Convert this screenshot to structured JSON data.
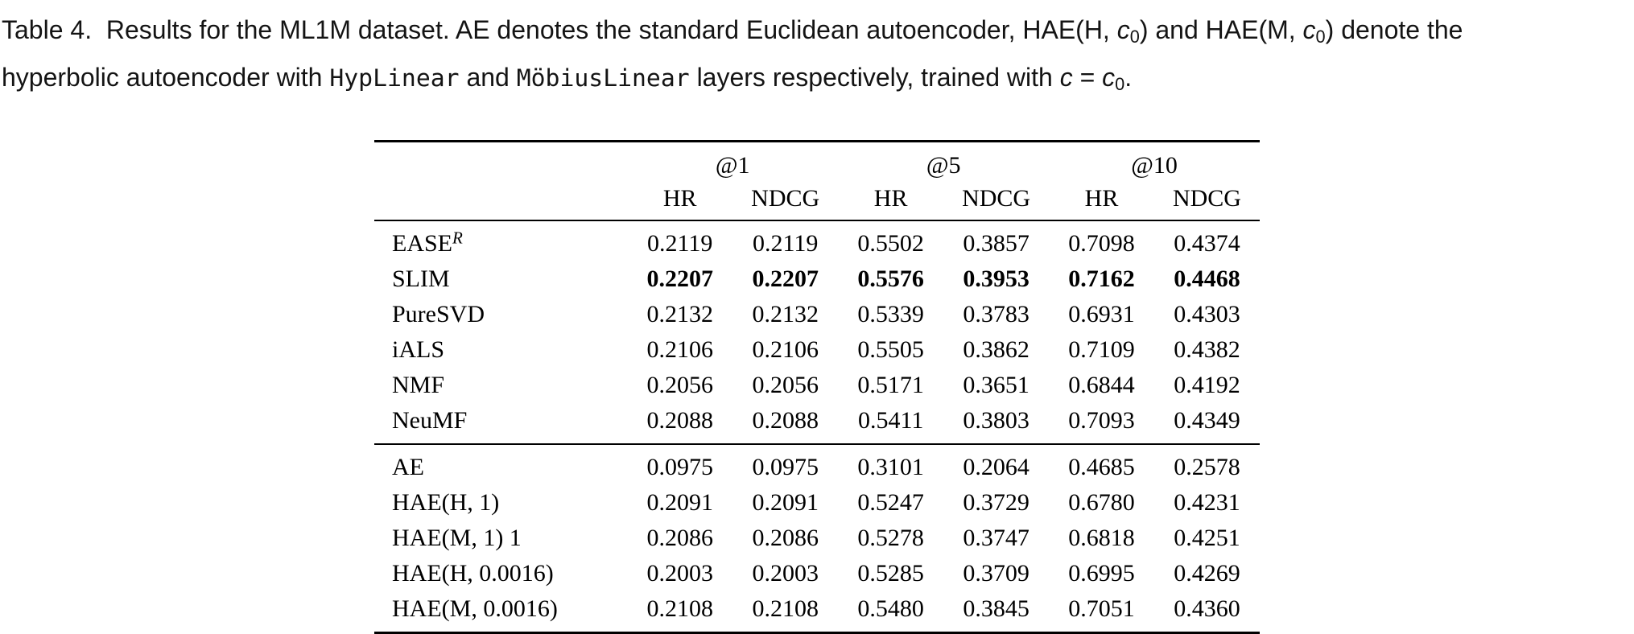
{
  "colors": {
    "text": "#000000",
    "background": "#ffffff"
  },
  "caption": {
    "segments": [
      {
        "style": "plain",
        "t": "Table 4.  Results for the ML1M dataset. AE denotes the standard Euclidean autoencoder, HAE(H, "
      },
      {
        "style": "math",
        "t": "c"
      },
      {
        "style": "msub",
        "t": "0"
      },
      {
        "style": "plain",
        "t": ") and HAE(M, "
      },
      {
        "style": "math",
        "t": "c"
      },
      {
        "style": "msub",
        "t": "0"
      },
      {
        "style": "plain",
        "t": ") denote the"
      },
      {
        "style": "br",
        "t": ""
      },
      {
        "style": "plain",
        "t": "hyperbolic autoencoder with "
      },
      {
        "style": "code",
        "t": "HypLinear"
      },
      {
        "style": "plain",
        "t": " and "
      },
      {
        "style": "code",
        "t": "MöbiusLinear"
      },
      {
        "style": "plain",
        "t": " layers respectively, trained with "
      },
      {
        "style": "math",
        "t": "c"
      },
      {
        "style": "plain",
        "t": " = "
      },
      {
        "style": "math",
        "t": "c"
      },
      {
        "style": "msub",
        "t": "0"
      },
      {
        "style": "plain",
        "t": "."
      }
    ]
  },
  "table": {
    "col_groups": [
      {
        "label": "@1"
      },
      {
        "label": "@5"
      },
      {
        "label": "@10"
      }
    ],
    "sub_headers": [
      "HR",
      "NDCG",
      "HR",
      "NDCG",
      "HR",
      "NDCG"
    ],
    "groups": [
      {
        "rows": [
          {
            "label": "EASE",
            "label_sup": "R",
            "bold": false,
            "values": [
              "0.2119",
              "0.2119",
              "0.5502",
              "0.3857",
              "0.7098",
              "0.4374"
            ]
          },
          {
            "label": "SLIM",
            "bold": true,
            "values": [
              "0.2207",
              "0.2207",
              "0.5576",
              "0.3953",
              "0.7162",
              "0.4468"
            ]
          },
          {
            "label": "PureSVD",
            "bold": false,
            "values": [
              "0.2132",
              "0.2132",
              "0.5339",
              "0.3783",
              "0.6931",
              "0.4303"
            ]
          },
          {
            "label": "iALS",
            "bold": false,
            "values": [
              "0.2106",
              "0.2106",
              "0.5505",
              "0.3862",
              "0.7109",
              "0.4382"
            ]
          },
          {
            "label": "NMF",
            "bold": false,
            "values": [
              "0.2056",
              "0.2056",
              "0.5171",
              "0.3651",
              "0.6844",
              "0.4192"
            ]
          },
          {
            "label": "NeuMF",
            "bold": false,
            "values": [
              "0.2088",
              "0.2088",
              "0.5411",
              "0.3803",
              "0.7093",
              "0.4349"
            ]
          }
        ]
      },
      {
        "rows": [
          {
            "label": "AE",
            "bold": false,
            "values": [
              "0.0975",
              "0.0975",
              "0.3101",
              "0.2064",
              "0.4685",
              "0.2578"
            ]
          },
          {
            "label": "HAE(H, 1)",
            "bold": false,
            "values": [
              "0.2091",
              "0.2091",
              "0.5247",
              "0.3729",
              "0.6780",
              "0.4231"
            ]
          },
          {
            "label": "HAE(M, 1) 1",
            "bold": false,
            "values": [
              "0.2086",
              "0.2086",
              "0.5278",
              "0.3747",
              "0.6818",
              "0.4251"
            ]
          },
          {
            "label": "HAE(H, 0.0016)",
            "bold": false,
            "values": [
              "0.2003",
              "0.2003",
              "0.5285",
              "0.3709",
              "0.6995",
              "0.4269"
            ]
          },
          {
            "label": "HAE(M, 0.0016)",
            "bold": false,
            "values": [
              "0.2108",
              "0.2108",
              "0.5480",
              "0.3845",
              "0.7051",
              "0.4360"
            ]
          }
        ]
      }
    ]
  }
}
